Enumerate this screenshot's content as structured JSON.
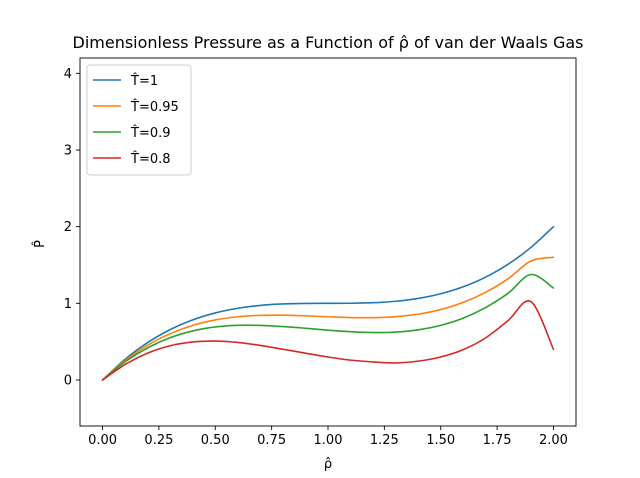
{
  "chart_data": {
    "type": "line",
    "title": "Dimensionless Pressure as a Function of ρ̂ of van der Waals Gas",
    "xlabel": "ρ̂",
    "ylabel": "P̂",
    "xlim": [
      -0.1,
      2.1
    ],
    "ylim": [
      -0.6,
      4.2
    ],
    "xticks": [
      0.0,
      0.25,
      0.5,
      0.75,
      1.0,
      1.25,
      1.5,
      1.75,
      2.0
    ],
    "xtick_labels": [
      "0.00",
      "0.25",
      "0.50",
      "0.75",
      "1.00",
      "1.25",
      "1.50",
      "1.75",
      "2.00"
    ],
    "yticks": [
      0,
      1,
      2,
      3,
      4
    ],
    "ytick_labels": [
      "0",
      "1",
      "2",
      "3",
      "4"
    ],
    "grid": false,
    "legend_position": "top-left",
    "x": [
      0.0,
      0.1,
      0.2,
      0.3,
      0.4,
      0.5,
      0.6,
      0.7,
      0.8,
      0.9,
      1.0,
      1.1,
      1.2,
      1.3,
      1.4,
      1.5,
      1.6,
      1.7,
      1.8,
      1.9,
      2.0
    ],
    "series": [
      {
        "name": "T̂=1",
        "color": "#1f77b4",
        "values": [
          0.0,
          0.271,
          0.488,
          0.657,
          0.784,
          0.875,
          0.936,
          0.973,
          0.992,
          0.999,
          1.0,
          1.001,
          1.008,
          1.027,
          1.064,
          1.125,
          1.216,
          1.343,
          1.512,
          1.729,
          2.0
        ]
      },
      {
        "name": "T̂=0.95",
        "color": "#ff7f0e",
        "values": [
          0.0,
          0.254,
          0.454,
          0.604,
          0.712,
          0.783,
          0.825,
          0.843,
          0.845,
          0.837,
          0.825,
          0.815,
          0.813,
          0.826,
          0.859,
          0.919,
          1.012,
          1.145,
          1.323,
          1.552,
          1.6
        ]
      },
      {
        "name": "T̂=0.9",
        "color": "#2ca02c",
        "values": [
          0.0,
          0.237,
          0.419,
          0.552,
          0.64,
          0.692,
          0.713,
          0.712,
          0.697,
          0.675,
          0.65,
          0.63,
          0.619,
          0.625,
          0.655,
          0.713,
          0.807,
          0.947,
          1.134,
          1.376,
          1.2
        ]
      },
      {
        "name": "T̂=0.8",
        "color": "#d62728",
        "values": [
          0.0,
          0.202,
          0.351,
          0.447,
          0.496,
          0.508,
          0.49,
          0.451,
          0.401,
          0.35,
          0.3,
          0.259,
          0.236,
          0.222,
          0.246,
          0.3,
          0.396,
          0.551,
          0.778,
          1.023,
          0.4
        ]
      }
    ]
  }
}
